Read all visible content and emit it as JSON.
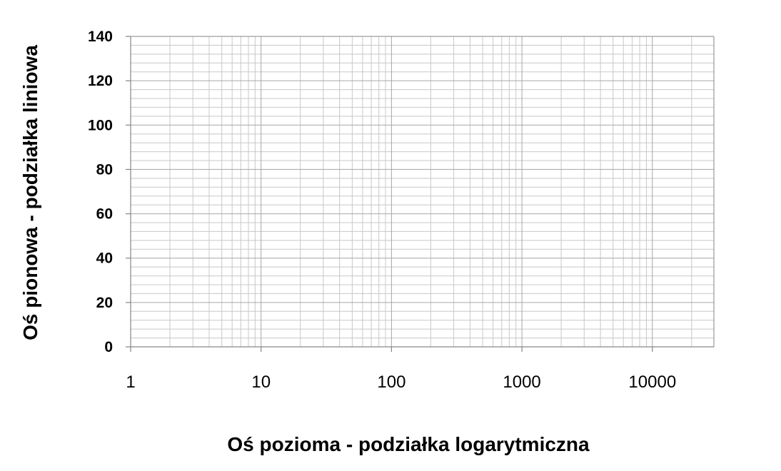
{
  "chart_data": {
    "type": "scatter",
    "x_scale": "log",
    "y_scale": "linear",
    "xlim": [
      1,
      30000
    ],
    "ylim": [
      0,
      140
    ],
    "x_ticks": [
      "1",
      "10",
      "100",
      "1000",
      "10000"
    ],
    "y_ticks": [
      "0",
      "20",
      "40",
      "60",
      "80",
      "100",
      "120",
      "140"
    ],
    "xlabel": "Oś pozioma - podziałka logarytmiczna",
    "ylabel": "Oś pionowa - podziałka liniowa",
    "grid": true,
    "series": []
  },
  "colors": {
    "background": "#ffffff",
    "grid_major": "#a6a6a6",
    "grid_minor": "#c8c8c8",
    "axis": "#868686",
    "text": "#000000"
  }
}
